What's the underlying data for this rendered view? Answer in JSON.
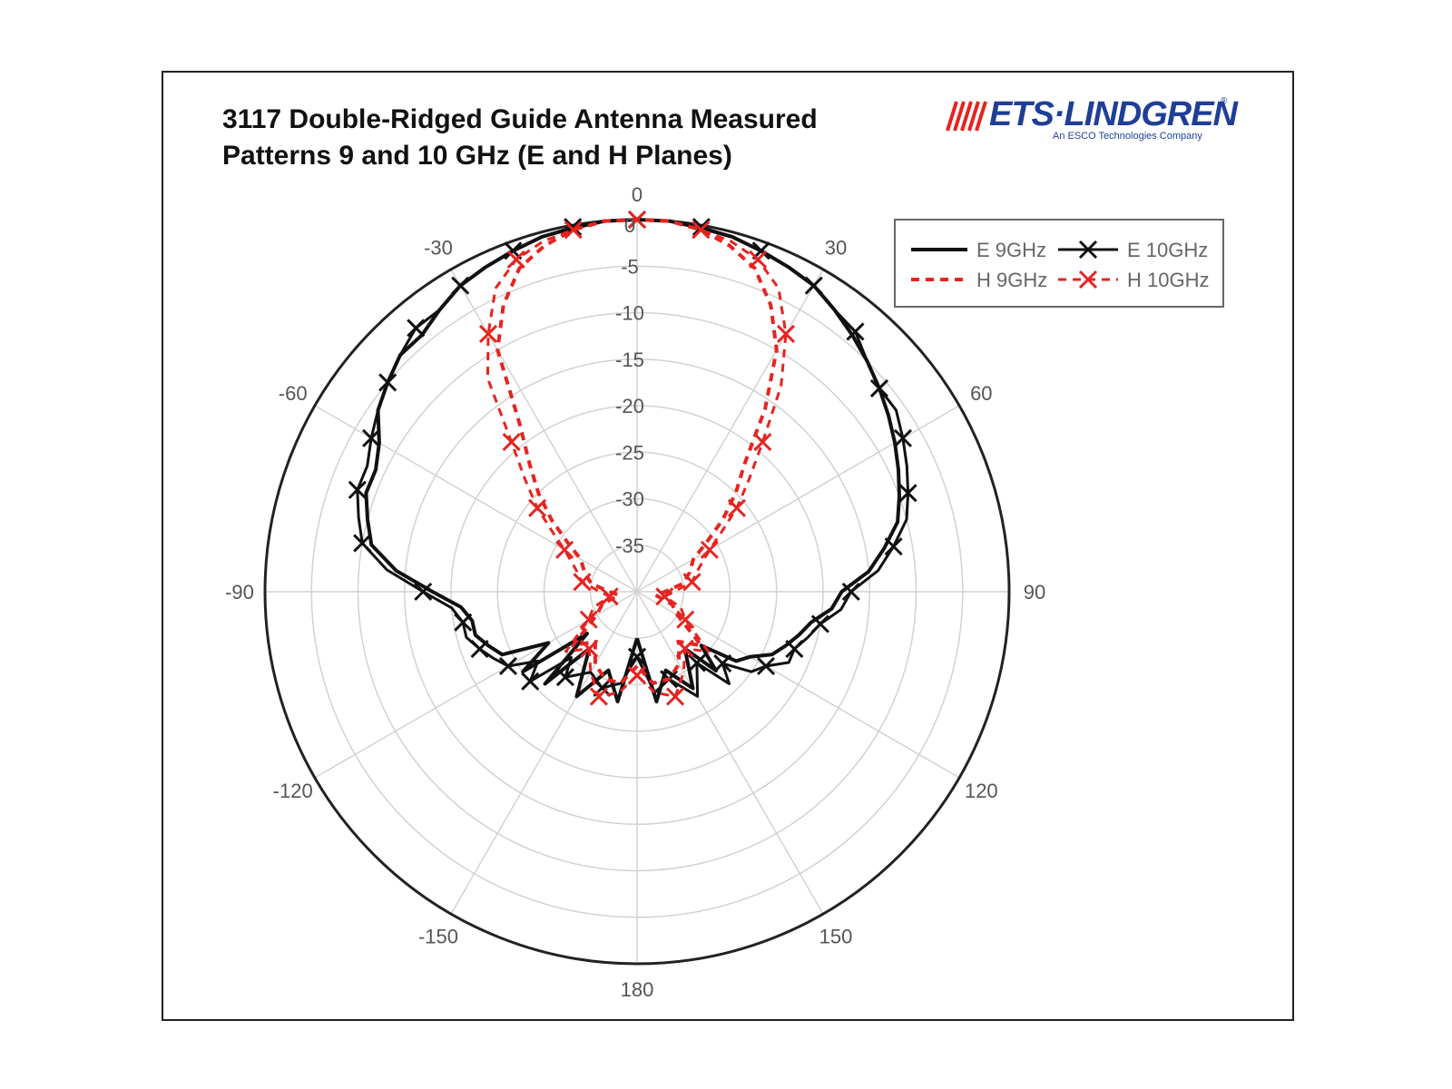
{
  "chart_data": {
    "type": "polar",
    "title": "3117 Double-Ridged Guide Antenna Measured Patterns 9 and 10 GHz (E and H Planes)",
    "title_lines": [
      "3117 Double-Ridged Guide Antenna Measured",
      "Patterns 9 and 10 GHz (E and H Planes)"
    ],
    "rlim": [
      -40,
      0
    ],
    "radial_ticks": [
      0,
      -5,
      -10,
      -15,
      -20,
      -25,
      -30,
      -35
    ],
    "angle_ticks": [
      0,
      30,
      60,
      90,
      120,
      150,
      180,
      -150,
      -120,
      -90,
      -60,
      -30
    ],
    "angle_tick_labels": [
      "0",
      "30",
      "60",
      "90",
      "120",
      "150",
      "180",
      "-150",
      "-120",
      "-90",
      "-60",
      "-30"
    ],
    "grid": true,
    "legend_position": "top-right",
    "series": [
      {
        "name": "E 9GHz",
        "color": "#111111",
        "style": "solid",
        "marker": "none",
        "angles": [
          -180,
          -170,
          -160,
          -150,
          -140,
          -135,
          -130,
          -125,
          -120,
          -115,
          -110,
          -105,
          -100,
          -95,
          -90,
          -85,
          -80,
          -75,
          -70,
          -65,
          -60,
          -55,
          -50,
          -45,
          -40,
          -35,
          -30,
          -25,
          -20,
          -15,
          -10,
          -5,
          0,
          5,
          10,
          15,
          20,
          25,
          30,
          35,
          40,
          45,
          50,
          55,
          60,
          65,
          70,
          75,
          80,
          85,
          90,
          95,
          100,
          105,
          110,
          115,
          120,
          125,
          130,
          135,
          140,
          150,
          160,
          170,
          180
        ],
        "values": [
          -35,
          -28,
          -31,
          -27,
          -32,
          -26,
          -33,
          -25,
          -29,
          -24,
          -23,
          -22,
          -22,
          -21,
          -18,
          -14,
          -11,
          -10,
          -9,
          -9,
          -8,
          -6,
          -5,
          -4,
          -4,
          -3,
          -2,
          -1.5,
          -1,
          -0.5,
          -0.3,
          0,
          0,
          0,
          -0.3,
          -0.5,
          -1,
          -1.5,
          -2,
          -3,
          -4,
          -5,
          -6,
          -7,
          -8,
          -9,
          -10,
          -11,
          -13,
          -15,
          -18,
          -19,
          -21,
          -22,
          -23,
          -24,
          -26,
          -27,
          -31,
          -28,
          -32,
          -28,
          -31,
          -28,
          -35
        ]
      },
      {
        "name": "E 10GHz",
        "color": "#111111",
        "style": "solid",
        "marker": "x",
        "angles": [
          -180,
          -170,
          -160,
          -150,
          -140,
          -135,
          -130,
          -125,
          -120,
          -115,
          -110,
          -105,
          -100,
          -95,
          -90,
          -85,
          -80,
          -75,
          -70,
          -65,
          -60,
          -55,
          -50,
          -45,
          -40,
          -35,
          -30,
          -25,
          -20,
          -15,
          -10,
          -5,
          0,
          5,
          10,
          15,
          20,
          25,
          30,
          35,
          40,
          45,
          50,
          55,
          60,
          65,
          70,
          75,
          80,
          85,
          90,
          95,
          100,
          105,
          110,
          115,
          120,
          125,
          130,
          135,
          140,
          150,
          160,
          170,
          180
        ],
        "values": [
          -33,
          -30,
          -29,
          -30,
          -28,
          -30,
          -25,
          -27,
          -24,
          -23,
          -22,
          -21,
          -21,
          -20,
          -17,
          -13,
          -10,
          -9,
          -8,
          -8,
          -7,
          -6,
          -5,
          -4,
          -3,
          -3,
          -2,
          -1.5,
          -1,
          -0.5,
          -0.2,
          0,
          0,
          0,
          -0.2,
          -0.5,
          -1,
          -1.5,
          -2,
          -3,
          -3.5,
          -5,
          -6,
          -6,
          -7,
          -8,
          -9,
          -10,
          -12,
          -14,
          -17,
          -18,
          -20,
          -21,
          -22,
          -22,
          -24,
          -25,
          -28,
          -26,
          -30,
          -27,
          -30,
          -29,
          -33
        ]
      },
      {
        "name": "H 9GHz",
        "color": "#e52421",
        "style": "dashed",
        "marker": "none",
        "angles": [
          -180,
          -170,
          -160,
          -150,
          -140,
          -130,
          -120,
          -110,
          -100,
          -90,
          -80,
          -70,
          -60,
          -55,
          -50,
          -45,
          -40,
          -35,
          -30,
          -25,
          -20,
          -15,
          -10,
          -5,
          0,
          5,
          10,
          15,
          20,
          25,
          30,
          35,
          40,
          45,
          50,
          55,
          60,
          70,
          80,
          90,
          100,
          110,
          120,
          130,
          140,
          150,
          160,
          170,
          180
        ],
        "values": [
          -32,
          -30,
          -30,
          -31,
          -33,
          -31,
          -35,
          -36,
          -38,
          -37,
          -35,
          -34,
          -33,
          -31,
          -28,
          -25,
          -22,
          -18,
          -10,
          -6,
          -3,
          -1.5,
          -0.5,
          0,
          0,
          0,
          -0.5,
          -1.5,
          -3,
          -6,
          -10,
          -16,
          -22,
          -25,
          -28,
          -31,
          -33,
          -34,
          -35,
          -37,
          -38,
          -36,
          -35,
          -31,
          -33,
          -31,
          -30,
          -30,
          -32
        ]
      },
      {
        "name": "H 10GHz",
        "color": "#e52421",
        "style": "dashed",
        "marker": "x",
        "angles": [
          -180,
          -170,
          -160,
          -150,
          -140,
          -130,
          -120,
          -110,
          -100,
          -90,
          -80,
          -70,
          -60,
          -55,
          -50,
          -45,
          -40,
          -35,
          -30,
          -25,
          -20,
          -15,
          -10,
          -5,
          0,
          5,
          10,
          15,
          20,
          25,
          30,
          35,
          40,
          45,
          50,
          55,
          60,
          70,
          80,
          90,
          100,
          110,
          120,
          130,
          140,
          150,
          160,
          170,
          180
        ],
        "values": [
          -31,
          -29,
          -28,
          -30,
          -32,
          -30,
          -34,
          -35,
          -37,
          -36,
          -34,
          -33,
          -31,
          -29,
          -26,
          -23,
          -19,
          -12,
          -8,
          -4,
          -2,
          -1,
          -0.5,
          0,
          0,
          0,
          -0.5,
          -1,
          -2,
          -4,
          -8,
          -13,
          -19,
          -23,
          -26,
          -29,
          -31,
          -33,
          -34,
          -36,
          -37,
          -35,
          -34,
          -30,
          -32,
          -30,
          -28,
          -29,
          -31
        ]
      }
    ]
  },
  "logo": {
    "name": "ETS·LINDGREN",
    "registered": "®",
    "subtitle": "An ESCO Technologies Company"
  },
  "colors": {
    "black": "#111111",
    "red": "#e52421",
    "grid": "#cfcfcf",
    "logo_blue": "#1f3f97",
    "logo_red": "#e52421"
  }
}
